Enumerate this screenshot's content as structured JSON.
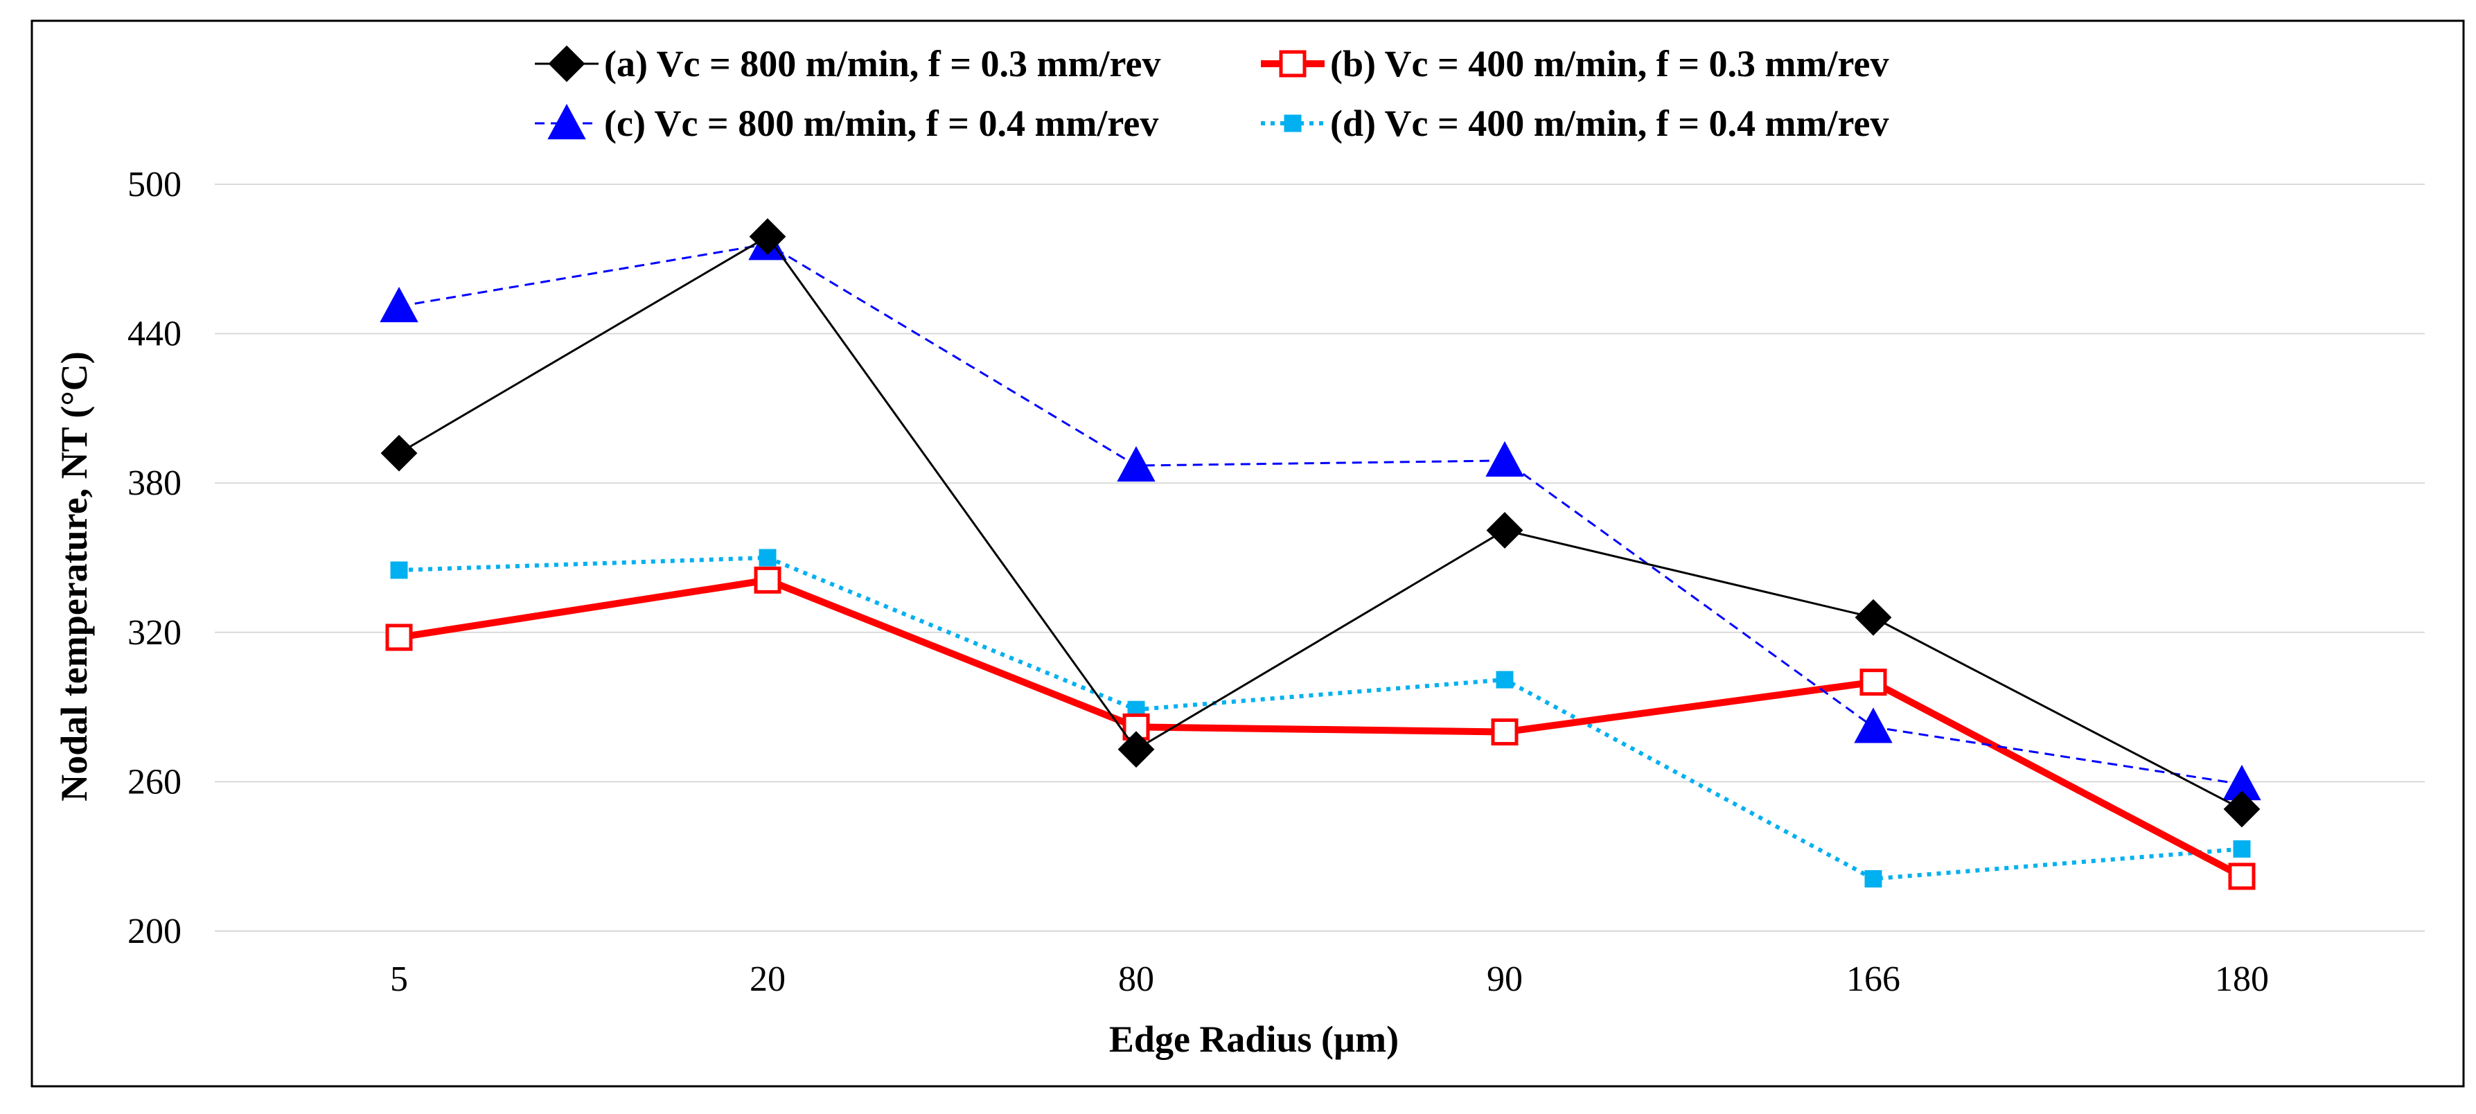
{
  "chart_data": {
    "type": "line",
    "categories": [
      "5",
      "20",
      "80",
      "90",
      "166",
      "180"
    ],
    "xlabel": "Edge Radius (µm)",
    "ylabel": "Nodal temperature, NT (°C)",
    "ylim": [
      200,
      500
    ],
    "yticks": [
      200,
      260,
      320,
      380,
      440,
      500
    ],
    "grid": "horizontal",
    "legend_position": "top",
    "series": [
      {
        "name": "(a) Vc = 800 m/min, f = 0.3 mm/rev",
        "values": [
          392,
          479,
          273,
          361,
          326,
          249
        ],
        "color": "#000000",
        "marker": "diamond",
        "line": "solid-thin"
      },
      {
        "name": "(b) Vc = 400 m/min, f = 0.3 mm/rev",
        "values": [
          318,
          341,
          282,
          280,
          300,
          222
        ],
        "color": "#ff0000",
        "marker": "square-open",
        "line": "solid-thick"
      },
      {
        "name": "(c) Vc = 800 m/min, f = 0.4 mm/rev",
        "values": [
          451,
          476,
          387,
          389,
          282,
          259
        ],
        "color": "#0000ff",
        "marker": "triangle",
        "line": "dashed"
      },
      {
        "name": "(d) Vc = 400 m/min, f = 0.4 mm/rev",
        "values": [
          345,
          350,
          289,
          301,
          221,
          233
        ],
        "color": "#00b0f0",
        "marker": "square-small",
        "line": "dotted"
      }
    ]
  }
}
